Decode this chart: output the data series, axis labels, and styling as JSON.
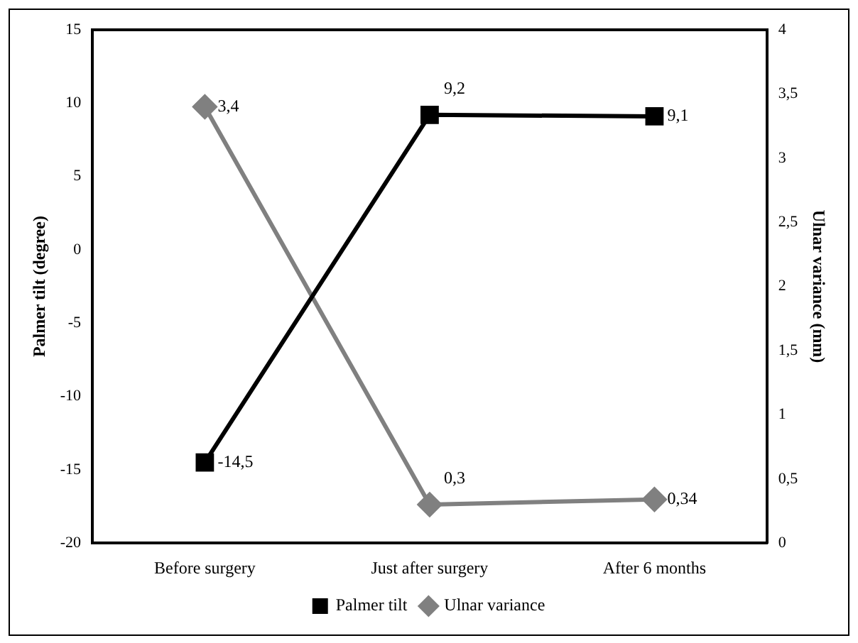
{
  "chart_data": {
    "type": "line",
    "ylabel": "Palmer tilt (degree)",
    "y2label": "Ulnar variance (mm)",
    "categories": [
      "Before surgery",
      "Just after surgery",
      "After 6 months"
    ],
    "series": [
      {
        "name": "Palmer tilt",
        "color": "#000000",
        "marker": "square",
        "values": [
          -14.5,
          9.2,
          9.1
        ],
        "value_labels": [
          "-14,5",
          "9,2",
          "9,1"
        ]
      },
      {
        "name": "Ulnar variance",
        "color": "#808080",
        "marker": "diamond",
        "axis": "y2",
        "values": [
          3.4,
          0.3,
          0.34
        ],
        "value_labels": [
          "3,4",
          "0,3",
          "0,34"
        ]
      }
    ],
    "ylim": [
      -20,
      15
    ],
    "yticks": [
      -20,
      -15,
      -10,
      -5,
      0,
      5,
      10,
      15
    ],
    "y2lim": [
      0,
      4
    ],
    "y2ticks": [
      0,
      {
        "value": 0.5,
        "label": "0,5"
      },
      1,
      {
        "value": 1.5,
        "label": "1,5"
      },
      2,
      {
        "value": 2.5,
        "label": "2,5"
      },
      3,
      {
        "value": 3.5,
        "label": "3,5"
      },
      4
    ],
    "grid": false,
    "legend": "bottom"
  }
}
